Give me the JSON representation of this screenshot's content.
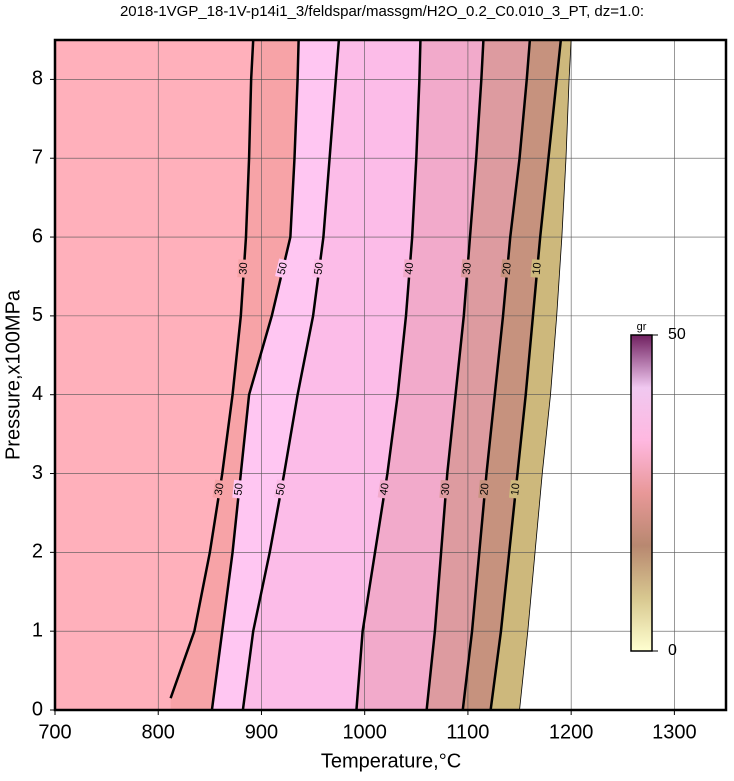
{
  "chart_data": {
    "type": "contour",
    "title": "2018-1VGP_18-1V-p14i1_3/feldspar/massgm/H2O_0.2_C0.010_3_PT, dz=1.0:",
    "x_label": "Temperature,°C",
    "y_label": "Pressure,x100MPa",
    "xlim": [
      700,
      1350
    ],
    "xticks": [
      700,
      800,
      900,
      1000,
      1100,
      1200,
      1300
    ],
    "ylim": [
      0,
      8.5
    ],
    "yticks": [
      0,
      1,
      2,
      3,
      4,
      5,
      6,
      7,
      8
    ],
    "grid": true,
    "background": "#ffb0bb",
    "contours": [
      {
        "level": 30,
        "labeled": true,
        "thick": true,
        "fill": "#f7a3a7",
        "T": [
          812,
          835,
          850,
          862,
          872,
          880,
          885,
          888,
          890,
          892
        ],
        "P": [
          0.15,
          1,
          2,
          3,
          4,
          5,
          6,
          7,
          8,
          8.5
        ]
      },
      {
        "level": 50,
        "labeled": true,
        "thick": true,
        "fill": "#ffc6f2",
        "T": [
          852,
          862,
          872,
          880,
          888,
          910,
          928,
          932,
          935,
          936
        ],
        "P": [
          0,
          1,
          2,
          3,
          4,
          5,
          6,
          7,
          8,
          8.5
        ]
      },
      {
        "level": 50,
        "labeled": true,
        "thick": true,
        "fill": "#fcbce8",
        "T": [
          882,
          892,
          908,
          922,
          935,
          950,
          960,
          966,
          972,
          975
        ],
        "P": [
          0,
          1,
          2,
          3,
          4,
          5,
          6,
          7,
          8,
          8.5
        ]
      },
      {
        "level": 40,
        "labeled": true,
        "thick": true,
        "fill": "#f2aacb",
        "T": [
          992,
          998,
          1010,
          1022,
          1032,
          1040,
          1046,
          1050,
          1053,
          1054
        ],
        "P": [
          0,
          1,
          2,
          3,
          4,
          5,
          6,
          7,
          8,
          8.5
        ]
      },
      {
        "level": 30,
        "labeled": true,
        "thick": true,
        "fill": "#dd9ba0",
        "T": [
          1060,
          1068,
          1074,
          1080,
          1088,
          1096,
          1102,
          1108,
          1113,
          1115
        ],
        "P": [
          0,
          1,
          2,
          3,
          4,
          5,
          6,
          7,
          8,
          8.5
        ]
      },
      {
        "level": 20,
        "labeled": true,
        "thick": true,
        "fill": "#c6927e",
        "T": [
          1095,
          1104,
          1111,
          1118,
          1126,
          1134,
          1141,
          1150,
          1157,
          1160
        ],
        "P": [
          0,
          1,
          2,
          3,
          4,
          5,
          6,
          7,
          8,
          8.5
        ]
      },
      {
        "level": 10,
        "labeled": true,
        "thick": true,
        "fill": "#cdb87c",
        "T": [
          1122,
          1132,
          1140,
          1148,
          1156,
          1163,
          1170,
          1178,
          1186,
          1190
        ],
        "P": [
          0,
          1,
          2,
          3,
          4,
          5,
          6,
          7,
          8,
          8.5
        ]
      },
      {
        "level": 0,
        "labeled": false,
        "thick": false,
        "fill": "#ffffff",
        "T": [
          1150,
          1158,
          1165,
          1172,
          1180,
          1186,
          1191,
          1195,
          1198,
          1200
        ],
        "P": [
          0,
          1,
          2,
          3,
          4,
          5,
          6,
          7,
          8,
          8.5
        ]
      }
    ],
    "colorbar": {
      "label": "gr",
      "min": 0,
      "max": 50,
      "ticks": [
        0,
        50
      ],
      "colors": [
        "#ffffd0",
        "#d8c890",
        "#b88870",
        "#e89898",
        "#ffb8e0",
        "#f0c8f0",
        "#702060"
      ]
    }
  }
}
